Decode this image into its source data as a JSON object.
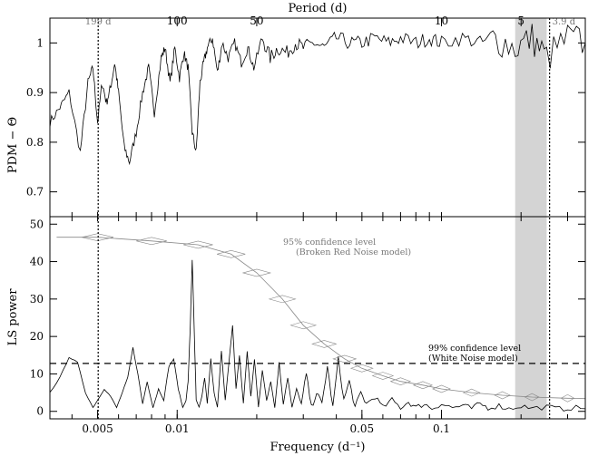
{
  "chart_data": [
    {
      "type": "line",
      "panel": "top",
      "ylabel": "PDM − Θ",
      "ylim": [
        0.65,
        1.05
      ],
      "yticks": [
        0.7,
        0.8,
        0.9,
        1
      ],
      "ytick_labels": [
        "0.7",
        "0.8",
        "0.9",
        "1"
      ],
      "xscale": "log",
      "xlim": [
        0.0033,
        0.35
      ],
      "top_axis": {
        "label": "Period (d)",
        "ticks": [
          100,
          50,
          10,
          5
        ],
        "tick_labels": [
          "100",
          "50",
          "10",
          "5"
        ]
      },
      "markers": [
        {
          "period_days": 199,
          "label": "199 d",
          "style": "dotted"
        },
        {
          "period_days": 3.9,
          "label": "3.9 d",
          "style": "dotted"
        }
      ],
      "shaded_band": {
        "x_from": 0.19,
        "x_to": 0.25
      },
      "series": [
        {
          "x": [
            0.0033,
            0.0036,
            0.0039,
            0.0043,
            0.0046,
            0.0048,
            0.005,
            0.0052,
            0.0054,
            0.0056,
            0.0058,
            0.006,
            0.0063,
            0.0066,
            0.007,
            0.0074,
            0.0078,
            0.0082,
            0.0087,
            0.009,
            0.0094,
            0.0098,
            0.0102,
            0.0106,
            0.011,
            0.0114,
            0.0118,
            0.0122,
            0.0126,
            0.013,
            0.0136,
            0.0142,
            0.0148,
            0.0156,
            0.0165,
            0.0175,
            0.0185,
            0.0195,
            0.021,
            0.0225,
            0.024,
            0.026,
            0.028,
            0.03,
            0.033,
            0.036,
            0.04,
            0.045,
            0.05,
            0.056,
            0.063,
            0.07,
            0.08,
            0.09,
            0.1,
            0.12,
            0.14,
            0.16,
            0.19,
            0.22,
            0.25,
            0.3,
            0.35
          ],
          "y": [
            0.84,
            0.87,
            0.9,
            0.78,
            0.92,
            0.95,
            0.84,
            0.92,
            0.88,
            0.91,
            0.96,
            0.9,
            0.79,
            0.76,
            0.82,
            0.9,
            0.95,
            0.86,
            0.97,
            0.99,
            0.92,
            0.99,
            0.93,
            0.98,
            0.95,
            0.82,
            0.78,
            0.92,
            0.96,
            0.99,
            1.01,
            0.94,
            1.0,
            0.97,
            1.0,
            0.96,
            0.99,
            0.95,
            1.01,
            0.97,
            0.99,
            0.98,
            1.0,
            0.99,
            1.0,
            0.99,
            1.01,
            1.0,
            1.0,
            1.01,
            1.0,
            1.01,
            1.0,
            1.01,
            1.0,
            1.01,
            1.0,
            1.01,
            0.99,
            1.01,
            0.97,
            1.01,
            1.0
          ]
        }
      ]
    },
    {
      "type": "line",
      "panel": "bottom",
      "xlabel": "Frequency (d⁻¹)",
      "ylabel": "LS power",
      "xscale": "log",
      "xlim": [
        0.0033,
        0.35
      ],
      "ylim": [
        -2,
        52
      ],
      "xticks": [
        0.005,
        0.01,
        0.05,
        0.1
      ],
      "xtick_labels": [
        "0.005",
        "0.01",
        "0.05",
        "0.1"
      ],
      "yticks": [
        0,
        10,
        20,
        30,
        40,
        50
      ],
      "ytick_labels": [
        "0",
        "10",
        "20",
        "30",
        "40",
        "50"
      ],
      "annotations": [
        {
          "text": "95% confidence level",
          "x": 0.028,
          "y": 45
        },
        {
          "text": "(Broken Red Noise model)",
          "x": 0.028,
          "y": 42
        },
        {
          "text": "99% confidence level",
          "x": 0.052,
          "y": 16
        },
        {
          "text": "(White Noise model)",
          "x": 0.052,
          "y": 13
        }
      ],
      "reference_lines": [
        {
          "kind": "horizontal",
          "y": 12.8,
          "style": "dashed",
          "label": "99% confidence level (White Noise model)"
        }
      ],
      "confidence_curve_95": {
        "x": [
          0.0035,
          0.005,
          0.008,
          0.012,
          0.016,
          0.02,
          0.025,
          0.03,
          0.036,
          0.043,
          0.05,
          0.06,
          0.07,
          0.085,
          0.1,
          0.13,
          0.17,
          0.22,
          0.3,
          0.35
        ],
        "y": [
          46.5,
          46.5,
          45.5,
          44.5,
          42,
          37,
          30,
          23,
          18,
          14,
          11.5,
          9.5,
          8,
          7,
          6,
          5,
          4.3,
          3.8,
          3.5,
          3.4
        ]
      },
      "series": [
        {
          "x": [
            0.0033,
            0.0036,
            0.0039,
            0.0042,
            0.0045,
            0.0048,
            0.005,
            0.0053,
            0.0056,
            0.0059,
            0.0062,
            0.0065,
            0.0068,
            0.0071,
            0.0074,
            0.0077,
            0.0081,
            0.0085,
            0.0089,
            0.0093,
            0.0097,
            0.0101,
            0.0105,
            0.0108,
            0.011,
            0.0112,
            0.0114,
            0.0116,
            0.0118,
            0.0121,
            0.0124,
            0.0127,
            0.013,
            0.0134,
            0.0138,
            0.0142,
            0.0147,
            0.0152,
            0.0157,
            0.0162,
            0.0167,
            0.0172,
            0.0178,
            0.0184,
            0.019,
            0.0196,
            0.0203,
            0.021,
            0.0218,
            0.0226,
            0.0234,
            0.0243,
            0.0252,
            0.0262,
            0.0272,
            0.0283,
            0.0295,
            0.0308,
            0.0322,
            0.0337,
            0.0353,
            0.037,
            0.0388,
            0.0407,
            0.0427,
            0.0448,
            0.0471,
            0.0495,
            0.052,
            0.056,
            0.06,
            0.065,
            0.07,
            0.075,
            0.08,
            0.086,
            0.092,
            0.1,
            0.11,
            0.12,
            0.13,
            0.14,
            0.15,
            0.165,
            0.18,
            0.2,
            0.22,
            0.25,
            0.28,
            0.31,
            0.35
          ],
          "y": [
            5,
            9,
            14.5,
            13,
            5,
            1,
            3,
            6,
            4,
            1,
            5,
            9,
            17,
            10,
            2,
            8,
            1,
            6,
            3,
            12,
            14,
            6,
            1,
            3,
            8,
            22,
            40.5,
            22,
            3,
            1,
            4,
            9,
            2,
            14,
            5,
            1,
            16,
            3,
            13,
            23,
            6,
            15,
            2,
            16,
            4,
            14,
            1,
            11,
            3,
            8,
            1,
            13,
            2,
            9,
            1,
            6,
            2,
            10,
            1,
            5,
            2,
            12,
            1,
            14,
            3,
            8,
            1,
            5,
            2,
            4,
            1,
            3,
            1,
            2.5,
            1,
            2,
            0.8,
            2,
            1,
            1.5,
            0.8,
            2,
            1,
            1.5,
            0.7,
            1.5,
            0.8,
            1.2,
            0.6,
            1,
            0.7
          ]
        }
      ]
    }
  ]
}
